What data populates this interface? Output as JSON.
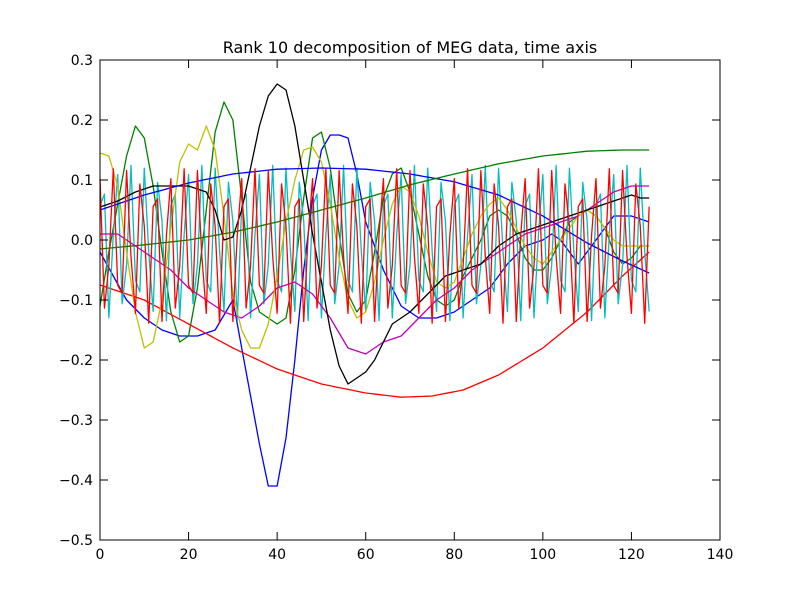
{
  "chart_data": {
    "type": "line",
    "title": "Rank 10 decomposition of MEG data, time axis",
    "xlabel": "",
    "ylabel": "",
    "xlim": [
      0,
      140
    ],
    "ylim": [
      -0.5,
      0.3
    ],
    "xticks": [
      0,
      20,
      40,
      60,
      80,
      100,
      120,
      140
    ],
    "yticks": [
      -0.5,
      -0.4,
      -0.3,
      -0.2,
      -0.1,
      0.0,
      0.1,
      0.2,
      0.3
    ],
    "ytick_labels": [
      "−0.5",
      "−0.4",
      "−0.3",
      "−0.2",
      "−0.1",
      "0.0",
      "0.1",
      "0.2",
      "0.3"
    ],
    "grid": false,
    "legend": "none",
    "n_samples": 125,
    "series": [
      {
        "color": "#0000ff",
        "style": "knots",
        "x": [
          0,
          3,
          6,
          10,
          14,
          18,
          22,
          26,
          30,
          33,
          36,
          38,
          40,
          42,
          44,
          46,
          48,
          50,
          52,
          54,
          56,
          58,
          60,
          64,
          68,
          72,
          76,
          80,
          84,
          88,
          92,
          96,
          100,
          102,
          104,
          106,
          108,
          112,
          116,
          120,
          124
        ],
        "y": [
          -0.02,
          -0.06,
          -0.1,
          -0.13,
          -0.15,
          -0.16,
          -0.16,
          -0.15,
          -0.1,
          -0.22,
          -0.34,
          -0.41,
          -0.41,
          -0.33,
          -0.2,
          -0.05,
          0.07,
          0.15,
          0.175,
          0.175,
          0.17,
          0.11,
          0.03,
          -0.05,
          -0.11,
          -0.13,
          -0.13,
          -0.12,
          -0.1,
          -0.08,
          -0.04,
          -0.01,
          0.0,
          0.01,
          0.0,
          -0.02,
          -0.04,
          0.0,
          0.04,
          0.04,
          0.03
        ]
      },
      {
        "color": "#007f00",
        "style": "knots",
        "x": [
          0,
          2,
          4,
          6,
          8,
          10,
          12,
          14,
          16,
          18,
          20,
          22,
          24,
          26,
          28,
          30,
          32,
          34,
          36,
          38,
          40,
          42,
          44,
          46,
          48,
          50,
          52,
          54,
          56,
          58,
          60,
          62,
          64,
          66,
          68,
          70,
          72,
          74,
          76,
          78,
          80,
          82,
          84,
          86,
          88,
          90,
          92,
          94,
          96,
          98,
          100,
          102,
          104,
          106,
          108,
          110,
          112,
          114,
          116,
          118,
          120,
          122,
          124
        ],
        "y": [
          -0.11,
          -0.02,
          0.06,
          0.14,
          0.19,
          0.17,
          0.09,
          -0.02,
          -0.12,
          -0.17,
          -0.16,
          -0.08,
          0.05,
          0.18,
          0.23,
          0.2,
          0.07,
          -0.07,
          -0.12,
          -0.13,
          -0.14,
          -0.13,
          -0.05,
          0.07,
          0.17,
          0.18,
          0.12,
          0.01,
          -0.09,
          -0.12,
          -0.1,
          -0.02,
          0.07,
          0.11,
          0.12,
          0.08,
          0.01,
          -0.06,
          -0.1,
          -0.11,
          -0.1,
          -0.06,
          -0.03,
          0.0,
          0.04,
          0.05,
          0.04,
          0.01,
          -0.03,
          -0.05,
          -0.05,
          -0.03,
          0.0,
          0.03,
          0.04,
          0.05,
          0.04,
          0.02,
          -0.02,
          -0.04,
          -0.03,
          -0.01,
          -0.01
        ]
      },
      {
        "color": "#ff0000",
        "style": "knots",
        "x": [
          0,
          10,
          20,
          30,
          40,
          50,
          60,
          68,
          75,
          82,
          90,
          100,
          110,
          118,
          124
        ],
        "y": [
          -0.075,
          -0.1,
          -0.14,
          -0.18,
          -0.215,
          -0.24,
          -0.255,
          -0.262,
          -0.26,
          -0.25,
          -0.225,
          -0.18,
          -0.12,
          -0.06,
          -0.02
        ]
      },
      {
        "color": "#00bfbf",
        "style": "oscillation",
        "x_start": 0,
        "x_end": 124,
        "center": -0.005,
        "amplitude": 0.13,
        "period": 3.2,
        "phase": 0.5
      },
      {
        "color": "#bf00bf",
        "style": "knots",
        "x": [
          0,
          4,
          8,
          12,
          16,
          20,
          24,
          28,
          32,
          36,
          40,
          44,
          48,
          52,
          56,
          60,
          64,
          68,
          72,
          76,
          80,
          84,
          88,
          92,
          96,
          100,
          104,
          108,
          112,
          116,
          120,
          124
        ],
        "y": [
          0.01,
          0.01,
          -0.01,
          -0.03,
          -0.05,
          -0.08,
          -0.1,
          -0.12,
          -0.13,
          -0.11,
          -0.08,
          -0.07,
          -0.09,
          -0.13,
          -0.18,
          -0.19,
          -0.17,
          -0.16,
          -0.13,
          -0.1,
          -0.08,
          -0.05,
          -0.03,
          -0.01,
          0.01,
          0.02,
          0.03,
          0.04,
          0.06,
          0.08,
          0.09,
          0.09
        ]
      },
      {
        "color": "#bfbf00",
        "style": "knots",
        "x": [
          0,
          2,
          4,
          6,
          8,
          10,
          12,
          14,
          16,
          18,
          20,
          22,
          24,
          26,
          28,
          30,
          32,
          34,
          36,
          38,
          40,
          42,
          44,
          46,
          48,
          50,
          52,
          54,
          56,
          58,
          60,
          62,
          64,
          66,
          68,
          70,
          72,
          74,
          76,
          78,
          80,
          82,
          84,
          86,
          88,
          90,
          92,
          94,
          96,
          98,
          100,
          102,
          104,
          106,
          108,
          110,
          112,
          114,
          116,
          118,
          120,
          122,
          124
        ],
        "y": [
          0.145,
          0.14,
          0.09,
          -0.02,
          -0.12,
          -0.18,
          -0.17,
          -0.1,
          0.02,
          0.13,
          0.16,
          0.15,
          0.19,
          0.15,
          0.04,
          -0.09,
          -0.15,
          -0.18,
          -0.18,
          -0.14,
          -0.06,
          0.03,
          0.1,
          0.15,
          0.155,
          0.13,
          0.06,
          -0.03,
          -0.1,
          -0.13,
          -0.12,
          -0.07,
          0.0,
          0.06,
          0.09,
          0.08,
          0.04,
          -0.02,
          -0.07,
          -0.08,
          -0.07,
          -0.03,
          0.01,
          0.04,
          0.06,
          0.07,
          0.05,
          0.02,
          -0.01,
          -0.03,
          -0.04,
          -0.02,
          0.0,
          0.02,
          0.04,
          0.05,
          0.04,
          0.02,
          0.0,
          -0.01,
          -0.01,
          -0.01,
          -0.01
        ]
      },
      {
        "color": "#000000",
        "style": "knots",
        "x": [
          0,
          4,
          8,
          12,
          16,
          20,
          24,
          26,
          28,
          30,
          32,
          34,
          36,
          38,
          40,
          42,
          44,
          46,
          48,
          50,
          52,
          54,
          56,
          58,
          60,
          62,
          64,
          66,
          68,
          70,
          74,
          78,
          82,
          86,
          90,
          94,
          98,
          102,
          106,
          110,
          114,
          118,
          120,
          122,
          124
        ],
        "y": [
          0.055,
          0.065,
          0.08,
          0.09,
          0.09,
          0.09,
          0.08,
          0.05,
          0.0,
          0.005,
          0.05,
          0.12,
          0.19,
          0.24,
          0.26,
          0.25,
          0.19,
          0.1,
          0.01,
          -0.07,
          -0.15,
          -0.21,
          -0.24,
          -0.23,
          -0.22,
          -0.2,
          -0.17,
          -0.14,
          -0.13,
          -0.12,
          -0.09,
          -0.06,
          -0.05,
          -0.04,
          -0.01,
          0.01,
          0.02,
          0.03,
          0.04,
          0.05,
          0.06,
          0.07,
          0.075,
          0.07,
          0.07
        ]
      },
      {
        "color": "#0000ff",
        "style": "knots",
        "x": [
          0,
          10,
          20,
          30,
          40,
          50,
          60,
          70,
          80,
          90,
          100,
          110,
          118,
          124
        ],
        "y": [
          0.05,
          0.075,
          0.095,
          0.11,
          0.118,
          0.12,
          0.118,
          0.11,
          0.097,
          0.075,
          0.04,
          -0.005,
          -0.035,
          -0.055
        ]
      },
      {
        "color": "#007f00",
        "style": "knots",
        "x": [
          0,
          10,
          20,
          30,
          40,
          50,
          60,
          70,
          80,
          90,
          100,
          110,
          118,
          124
        ],
        "y": [
          -0.015,
          -0.008,
          0.0,
          0.013,
          0.03,
          0.05,
          0.07,
          0.092,
          0.11,
          0.127,
          0.14,
          0.148,
          0.15,
          0.15
        ]
      },
      {
        "color": "#ff0000",
        "style": "oscillation",
        "x_start": 0,
        "x_end": 124,
        "center": -0.01,
        "amplitude": 0.13,
        "period": 3.2,
        "phase": 2.1
      }
    ]
  }
}
